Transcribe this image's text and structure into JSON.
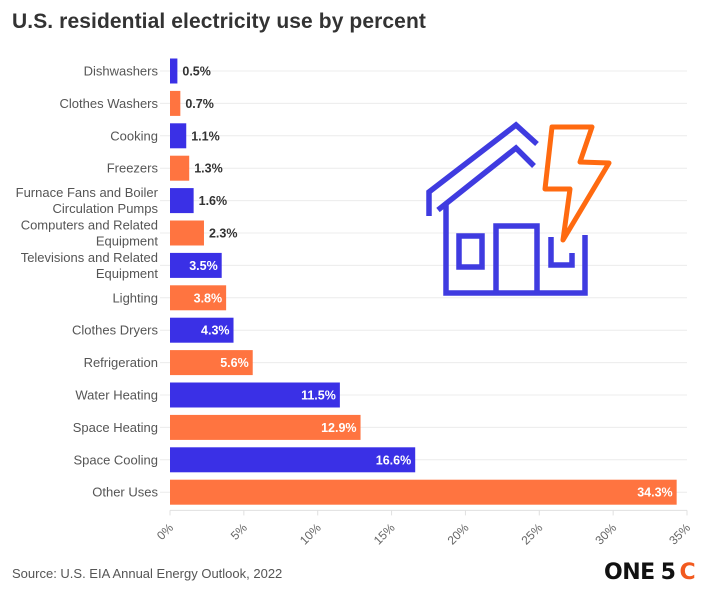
{
  "title": "U.S. residential electricity use by percent",
  "source": "Source: U.S. EIA Annual Energy Outlook, 2022",
  "logo": {
    "part1": "ONE",
    "part2": "5",
    "part3": "C"
  },
  "colors": {
    "blue": "#3a30e6",
    "orange": "#ff7440",
    "icon_blue": "#3f3be0",
    "icon_orange": "#ff6a10"
  },
  "chart_data": {
    "type": "bar",
    "orientation": "horizontal",
    "title": "U.S. residential electricity use by percent",
    "xlabel": "",
    "ylabel": "",
    "xlim": [
      0,
      35
    ],
    "grid": true,
    "ticks": [
      "0%",
      "5%",
      "10%",
      "15%",
      "20%",
      "25%",
      "30%",
      "35%"
    ],
    "tick_values": [
      0,
      5,
      10,
      15,
      20,
      25,
      30,
      35
    ],
    "categories": [
      [
        "Dishwashers"
      ],
      [
        "Clothes Washers"
      ],
      [
        "Cooking"
      ],
      [
        "Freezers"
      ],
      [
        "Furnace Fans and Boiler",
        "Circulation Pumps"
      ],
      [
        "Computers and Related",
        "Equipment"
      ],
      [
        "Televisions and Related",
        "Equipment"
      ],
      [
        "Lighting"
      ],
      [
        "Clothes Dryers"
      ],
      [
        "Refrigeration"
      ],
      [
        "Water Heating"
      ],
      [
        "Space Heating"
      ],
      [
        "Space Cooling"
      ],
      [
        "Other Uses"
      ]
    ],
    "values": [
      0.5,
      0.7,
      1.1,
      1.3,
      1.6,
      2.3,
      3.5,
      3.8,
      4.3,
      5.6,
      11.5,
      12.9,
      16.6,
      34.3
    ],
    "value_labels": [
      "0.5%",
      "0.7%",
      "1.1%",
      "1.3%",
      "1.6%",
      "2.3%",
      "3.5%",
      "3.8%",
      "4.3%",
      "5.6%",
      "11.5%",
      "12.9%",
      "16.6%",
      "34.3%"
    ],
    "bar_colors": [
      "blue",
      "orange",
      "blue",
      "orange",
      "blue",
      "orange",
      "blue",
      "orange",
      "blue",
      "orange",
      "blue",
      "orange",
      "blue",
      "orange"
    ]
  },
  "illustration": {
    "icon": "house-with-lightning-bolt-icon"
  }
}
